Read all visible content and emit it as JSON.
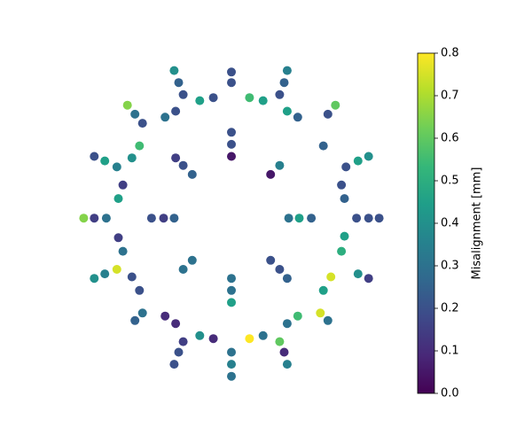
{
  "chart_data": {
    "type": "scatter",
    "x": [
      -0.38,
      -0.35,
      -0.32,
      0,
      0,
      0.37,
      0.35,
      0.32,
      -0.21,
      -0.12,
      0.12,
      0.21,
      -0.69,
      -0.64,
      -0.59,
      -0.44,
      -0.37,
      0.37,
      0.44,
      0.69,
      0.64,
      0,
      0,
      0,
      -0.61,
      -0.66,
      -0.76,
      -0.84,
      -0.91,
      -0.37,
      -0.32,
      -0.26,
      0.32,
      0.26,
      0.61,
      0.76,
      0.84,
      0.91,
      -0.72,
      -0.75,
      0.73,
      0.75,
      -0.98,
      -0.91,
      -0.83,
      -0.53,
      -0.45,
      -0.38,
      0.38,
      0.45,
      0.53,
      0.83,
      0.91,
      0.98,
      -0.75,
      -0.72,
      0.75,
      0.73,
      -0.91,
      -0.84,
      -0.76,
      -0.66,
      -0.61,
      -0.26,
      -0.32,
      0.26,
      0.32,
      0.37,
      0.66,
      0.61,
      0.84,
      0.91,
      0,
      0,
      0,
      -0.59,
      -0.64,
      -0.44,
      -0.37,
      -0.32,
      -0.35,
      -0.38,
      -0.21,
      -0.12,
      0.44,
      0.37,
      0.59,
      0.64,
      0.12,
      0.21,
      0.32,
      0.35,
      0.37,
      0,
      0,
      0
    ],
    "y": [
      1.02,
      0.94,
      0.86,
      1.01,
      0.94,
      1.02,
      0.94,
      0.86,
      0.82,
      0.84,
      0.84,
      0.82,
      0.79,
      0.73,
      0.67,
      0.71,
      0.75,
      0.75,
      0.71,
      0.79,
      0.73,
      0.61,
      0.53,
      0.45,
      0.52,
      0.44,
      0.38,
      0.42,
      0.45,
      0.44,
      0.39,
      0.33,
      0.39,
      0.33,
      0.52,
      0.38,
      0.42,
      0.45,
      0.26,
      0.17,
      0.26,
      0.17,
      0.04,
      0.04,
      0.04,
      0.04,
      0.04,
      0.04,
      0.04,
      0.04,
      0.04,
      0.04,
      0.04,
      0.04,
      -0.09,
      -0.18,
      -0.08,
      -0.18,
      -0.36,
      -0.33,
      -0.3,
      -0.35,
      -0.44,
      -0.24,
      -0.3,
      -0.24,
      -0.3,
      -0.36,
      -0.35,
      -0.44,
      -0.33,
      -0.36,
      -0.36,
      -0.44,
      -0.52,
      -0.59,
      -0.64,
      -0.61,
      -0.66,
      -0.78,
      -0.85,
      -0.93,
      -0.74,
      -0.76,
      -0.61,
      -0.66,
      -0.59,
      -0.64,
      -0.76,
      -0.74,
      -0.78,
      -0.85,
      -0.93,
      -0.85,
      -0.93,
      -1.01
    ],
    "c": [
      0.4,
      0.25,
      0.2,
      0.2,
      0.2,
      0.35,
      0.25,
      0.2,
      0.45,
      0.2,
      0.55,
      0.45,
      0.65,
      0.3,
      0.2,
      0.3,
      0.2,
      0.45,
      0.25,
      0.6,
      0.2,
      0.2,
      0.2,
      0.05,
      0.55,
      0.4,
      0.35,
      0.45,
      0.2,
      0.15,
      0.2,
      0.25,
      0.35,
      0.05,
      0.25,
      0.2,
      0.45,
      0.4,
      0.15,
      0.45,
      0.2,
      0.25,
      0.65,
      0.15,
      0.3,
      0.2,
      0.15,
      0.25,
      0.3,
      0.45,
      0.25,
      0.2,
      0.2,
      0.2,
      0.15,
      0.3,
      0.45,
      0.5,
      0.4,
      0.35,
      0.75,
      0.2,
      0.2,
      0.3,
      0.3,
      0.2,
      0.2,
      0.25,
      0.75,
      0.45,
      0.4,
      0.15,
      0.3,
      0.3,
      0.45,
      0.3,
      0.25,
      0.1,
      0.1,
      0.15,
      0.2,
      0.2,
      0.4,
      0.1,
      0.55,
      0.3,
      0.75,
      0.3,
      0.8,
      0.3,
      0.6,
      0.1,
      0.35,
      0.3,
      0.35,
      0.3
    ],
    "xlim": [
      -1.1,
      1.1
    ],
    "ylim": [
      -1.1,
      1.1
    ],
    "colormap": "viridis",
    "clim": [
      0,
      0.8
    ],
    "cticks": [
      {
        "value": 0,
        "label": "0.0"
      },
      {
        "value": 0.1,
        "label": "0.1"
      },
      {
        "value": 0.2,
        "label": "0.2"
      },
      {
        "value": 0.3,
        "label": "0.3"
      },
      {
        "value": 0.4,
        "label": "0.4"
      },
      {
        "value": 0.5,
        "label": "0.5"
      },
      {
        "value": 0.6,
        "label": "0.6"
      },
      {
        "value": 0.7,
        "label": "0.7"
      },
      {
        "value": 0.8,
        "label": "0.8"
      }
    ],
    "colorbar_label": "Misalignment [mm]"
  }
}
